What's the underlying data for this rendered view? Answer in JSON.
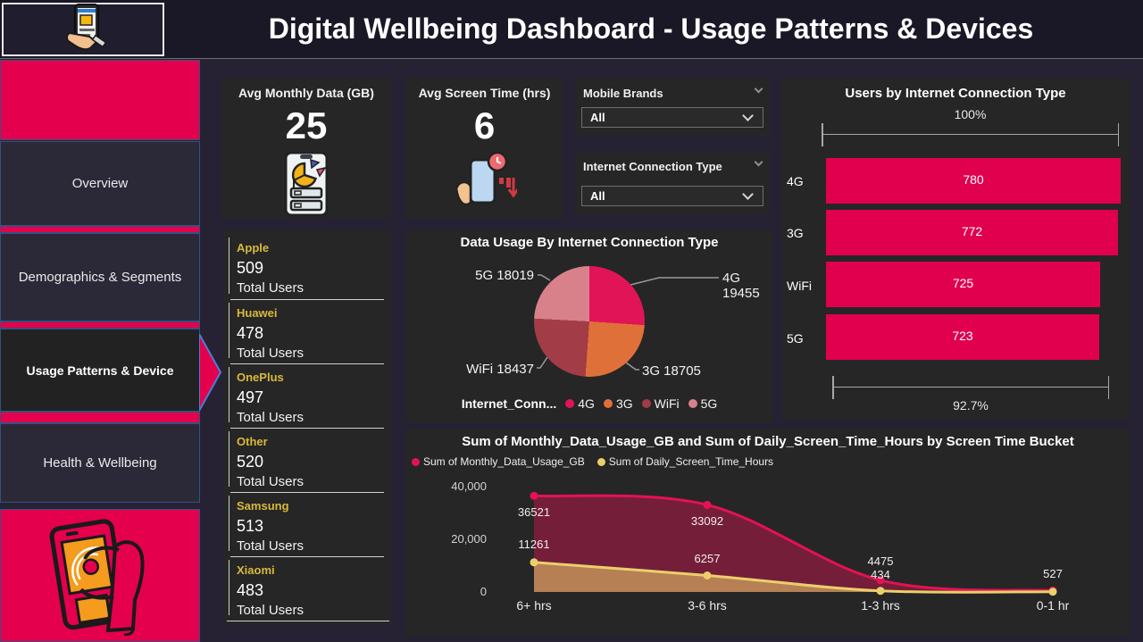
{
  "header": {
    "title": "Digital Wellbeing Dashboard - Usage Patterns & Devices"
  },
  "sidebar": {
    "items": [
      {
        "label": "Overview",
        "active": false
      },
      {
        "label": "Demographics & Segments",
        "active": false
      },
      {
        "label": "Usage Patterns & Device",
        "active": true
      },
      {
        "label": "Health & Wellbeing",
        "active": false
      }
    ]
  },
  "kpis": [
    {
      "title": "Avg Monthly Data (GB)",
      "value": "25",
      "icon": "phone-pie-chart-icon"
    },
    {
      "title": "Avg Screen Time (hrs)",
      "value": "6",
      "icon": "hand-phone-clock-icon"
    }
  ],
  "slicers": [
    {
      "label": "Mobile Brands",
      "value": "All",
      "icon": "chevron-down-icon"
    },
    {
      "label": "Internet Connection Type",
      "value": "All",
      "icon": "chevron-down-icon"
    }
  ],
  "brand_cards": {
    "rows": [
      {
        "brand": "Apple",
        "value": "509",
        "caption": "Total Users"
      },
      {
        "brand": "Huawei",
        "value": "478",
        "caption": "Total Users"
      },
      {
        "brand": "OnePlus",
        "value": "497",
        "caption": "Total Users"
      },
      {
        "brand": "Other",
        "value": "520",
        "caption": "Total Users"
      },
      {
        "brand": "Samsung",
        "value": "513",
        "caption": "Total Users"
      },
      {
        "brand": "Xiaomi",
        "value": "483",
        "caption": "Total Users"
      }
    ]
  },
  "colors": {
    "sidebar_pink": "#e4004d",
    "bar_pink": "#e0004e",
    "line_pink": "#e31254",
    "line_yellow": "#ebcf6b",
    "brand_label_yellow": "#d9b93c"
  },
  "chart_data": [
    {
      "type": "bar",
      "title": "Users by Internet Connection Type",
      "orientation": "horizontal",
      "categories": [
        "4G",
        "3G",
        "WiFi",
        "5G"
      ],
      "values": [
        780,
        772,
        725,
        723
      ],
      "bar_color": "#e0004e",
      "top_annotation": "100%",
      "bottom_annotation": "92.7%",
      "xlim": [
        0,
        780
      ],
      "value_labels_inside": true
    },
    {
      "type": "pie",
      "title": "Data Usage By Internet Connection Type",
      "legend_title": "Internet_Conn...",
      "legend_position": "bottom",
      "start_angle_deg": 0,
      "slices": [
        {
          "label": "4G",
          "value": 19455,
          "color": "#e11457"
        },
        {
          "label": "3G",
          "value": 18705,
          "color": "#e0703a"
        },
        {
          "label": "WiFi",
          "value": 18437,
          "color": "#a23c46"
        },
        {
          "label": "5G",
          "value": 18019,
          "color": "#d9818b"
        }
      ],
      "callouts": [
        {
          "text": "5G 18019"
        },
        {
          "text": "4G 19455"
        },
        {
          "text": "WiFi 18437"
        },
        {
          "text": "3G 18705"
        }
      ]
    },
    {
      "type": "area",
      "title": "Sum of Monthly_Data_Usage_GB and Sum of Daily_Screen_Time_Hours by Screen Time Bucket",
      "categories": [
        "6+ hrs",
        "3-6 hrs",
        "1-3 hrs",
        "0-1 hr"
      ],
      "series": [
        {
          "name": "Sum of Monthly_Data_Usage_GB",
          "color": "#e31254",
          "values": [
            36521,
            33092,
            4475,
            527
          ],
          "labels": [
            "36521",
            "33092",
            "4475",
            "527"
          ]
        },
        {
          "name": "Sum of Daily_Screen_Time_Hours",
          "color": "#ebcf6b",
          "values": [
            11261,
            6257,
            434,
            null
          ],
          "labels": [
            "11261",
            "6257",
            "434",
            ""
          ]
        }
      ],
      "ylim": [
        0,
        40000
      ],
      "yticks": [
        "40,000",
        "20,000",
        "0"
      ],
      "grid": false,
      "legend_position": "top-left"
    }
  ]
}
